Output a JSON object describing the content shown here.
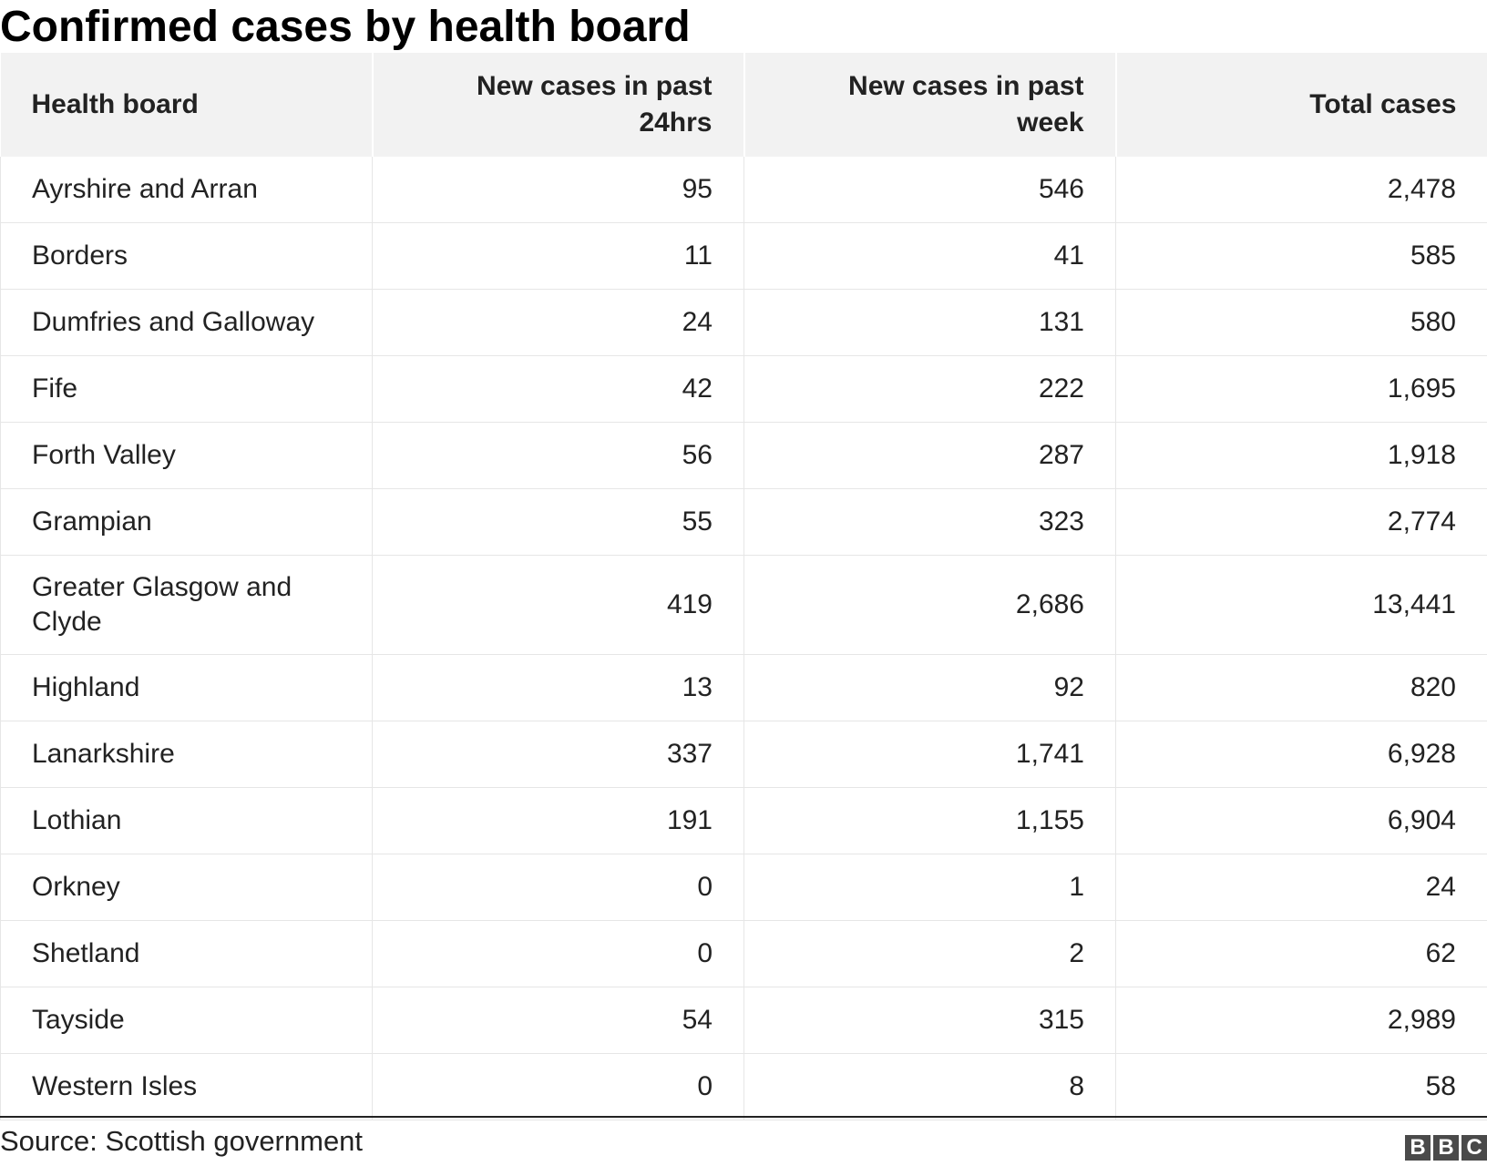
{
  "chart_data": {
    "type": "table",
    "title": "Confirmed cases by health board",
    "columns": [
      "Health board",
      "New cases in past 24hrs",
      "New cases in past week",
      "Total cases"
    ],
    "rows": [
      {
        "board": "Ayrshire and Arran",
        "new_24hrs": "95",
        "new_week": "546",
        "total": "2,478"
      },
      {
        "board": "Borders",
        "new_24hrs": "11",
        "new_week": "41",
        "total": "585"
      },
      {
        "board": "Dumfries and Galloway",
        "new_24hrs": "24",
        "new_week": "131",
        "total": "580"
      },
      {
        "board": "Fife",
        "new_24hrs": "42",
        "new_week": "222",
        "total": "1,695"
      },
      {
        "board": "Forth Valley",
        "new_24hrs": "56",
        "new_week": "287",
        "total": "1,918"
      },
      {
        "board": "Grampian",
        "new_24hrs": "55",
        "new_week": "323",
        "total": "2,774"
      },
      {
        "board": "Greater Glasgow and Clyde",
        "new_24hrs": "419",
        "new_week": "2,686",
        "total": "13,441"
      },
      {
        "board": "Highland",
        "new_24hrs": "13",
        "new_week": "92",
        "total": "820"
      },
      {
        "board": "Lanarkshire",
        "new_24hrs": "337",
        "new_week": "1,741",
        "total": "6,928"
      },
      {
        "board": "Lothian",
        "new_24hrs": "191",
        "new_week": "1,155",
        "total": "6,904"
      },
      {
        "board": "Orkney",
        "new_24hrs": "0",
        "new_week": "1",
        "total": "24"
      },
      {
        "board": "Shetland",
        "new_24hrs": "0",
        "new_week": "2",
        "total": "62"
      },
      {
        "board": "Tayside",
        "new_24hrs": "54",
        "new_week": "315",
        "total": "2,989"
      },
      {
        "board": "Western Isles",
        "new_24hrs": "0",
        "new_week": "8",
        "total": "58"
      }
    ],
    "source": "Source: Scottish government"
  },
  "logo": {
    "letters": [
      "B",
      "B",
      "C"
    ]
  },
  "colors": {
    "header_bg": "#f2f2f2",
    "text": "#222222",
    "rule": "#e6e6e6",
    "logo_bg": "#4a4a4a"
  }
}
